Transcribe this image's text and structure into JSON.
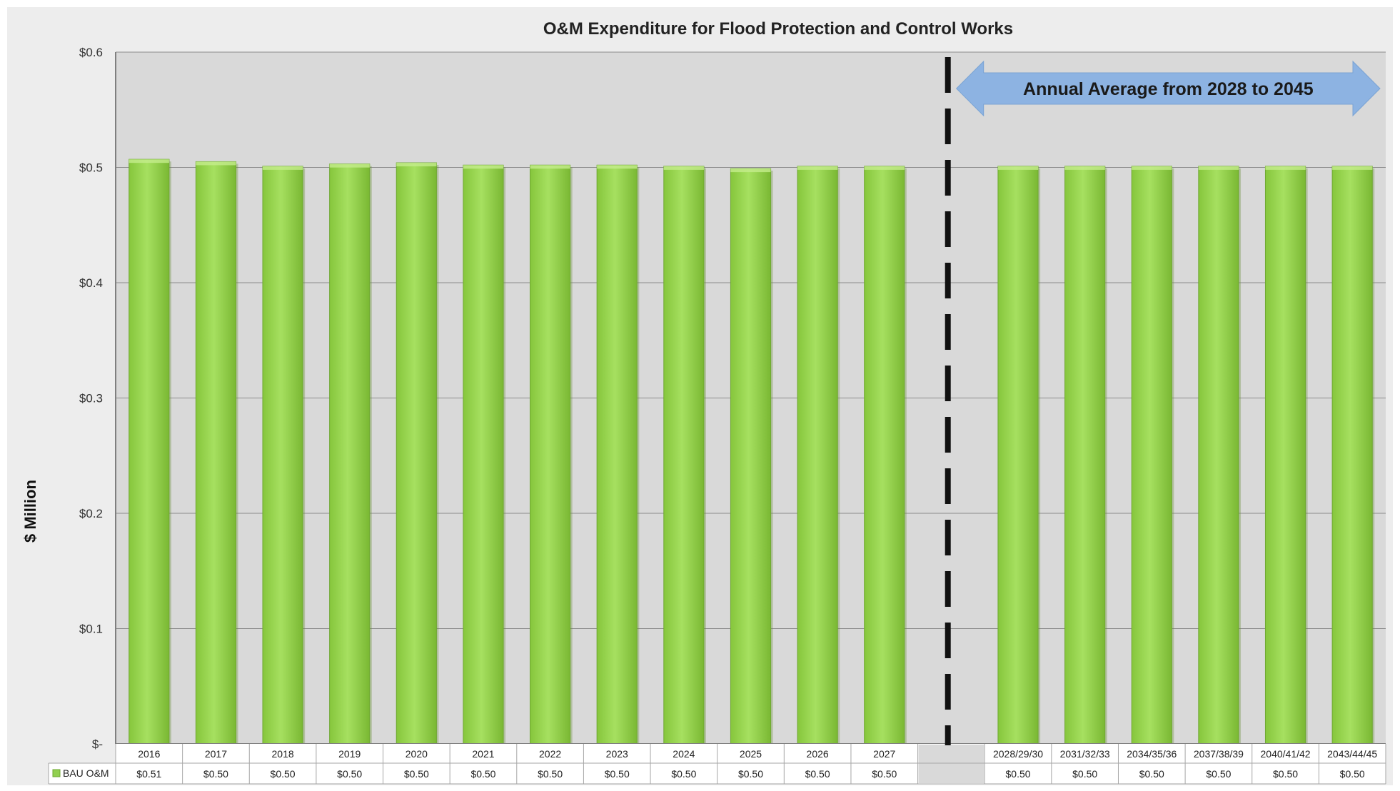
{
  "chart_data": {
    "type": "bar",
    "title": "O&M Expenditure for Flood Protection and Control Works",
    "ylabel": "$ Million",
    "xlabel": "",
    "ylim": [
      0,
      0.6
    ],
    "yticks": [
      {
        "value": 0,
        "label": "$-"
      },
      {
        "value": 0.1,
        "label": "$0.1"
      },
      {
        "value": 0.2,
        "label": "$0.2"
      },
      {
        "value": 0.3,
        "label": "$0.3"
      },
      {
        "value": 0.4,
        "label": "$0.4"
      },
      {
        "value": 0.5,
        "label": "$0.5"
      },
      {
        "value": 0.6,
        "label": "$0.6"
      }
    ],
    "grid": true,
    "categories": [
      "2016",
      "2017",
      "2018",
      "2019",
      "2020",
      "2021",
      "2022",
      "2023",
      "2024",
      "2025",
      "2026",
      "2027",
      "",
      "2028/29/30",
      "2031/32/33",
      "2034/35/36",
      "2037/38/39",
      "2040/41/42",
      "2043/44/45"
    ],
    "series": [
      {
        "name": "BAU O&M",
        "color": "#92d050",
        "values": [
          0.507,
          0.505,
          0.501,
          0.503,
          0.504,
          0.502,
          0.502,
          0.502,
          0.501,
          0.499,
          0.501,
          0.501,
          null,
          0.501,
          0.501,
          0.501,
          0.501,
          0.501,
          0.501
        ],
        "labels": [
          "$0.51",
          "$0.50",
          "$0.50",
          "$0.50",
          "$0.50",
          "$0.50",
          "$0.50",
          "$0.50",
          "$0.50",
          "$0.50",
          "$0.50",
          "$0.50",
          "",
          "$0.50",
          "$0.50",
          "$0.50",
          "$0.50",
          "$0.50",
          "$0.50"
        ]
      }
    ],
    "data_table": true,
    "legend": "in data table",
    "annotation": {
      "text": "Annual Average from 2028 to 2045",
      "divider_after_category": "2027",
      "arrow_color": "#8db3e2"
    }
  }
}
